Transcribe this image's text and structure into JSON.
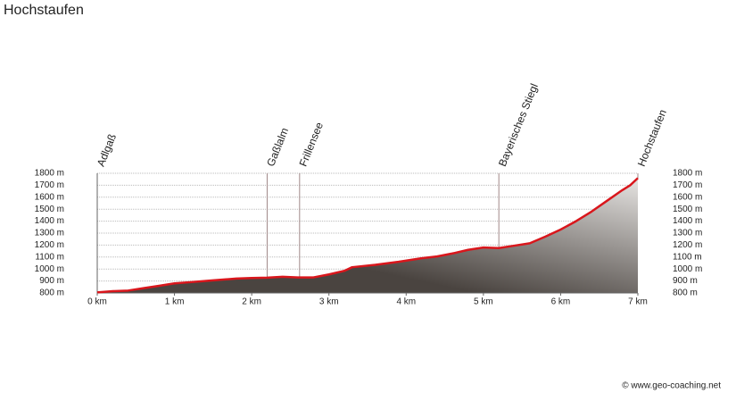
{
  "chart_data": {
    "type": "area",
    "title": "Hochstaufen",
    "x": [
      0,
      0.2,
      0.4,
      0.6,
      0.8,
      1.0,
      1.2,
      1.5,
      1.8,
      2.0,
      2.2,
      2.4,
      2.6,
      2.8,
      3.0,
      3.2,
      3.3,
      3.6,
      3.9,
      4.2,
      4.4,
      4.6,
      4.8,
      5.0,
      5.2,
      5.4,
      5.6,
      5.8,
      6.0,
      6.2,
      6.4,
      6.6,
      6.8,
      6.9,
      7.0
    ],
    "values": [
      805,
      815,
      820,
      840,
      860,
      880,
      890,
      905,
      920,
      925,
      928,
      935,
      930,
      930,
      955,
      985,
      1015,
      1035,
      1060,
      1090,
      1105,
      1130,
      1160,
      1180,
      1175,
      1195,
      1215,
      1270,
      1330,
      1400,
      1480,
      1570,
      1660,
      1700,
      1760
    ],
    "line_color": "#d9161c",
    "fill_colors": [
      "#4a4440",
      "#e6e4e2"
    ],
    "xlim": [
      0,
      7
    ],
    "xticks": [
      {
        "value": 0,
        "label": "0 km"
      },
      {
        "value": 1,
        "label": "1 km"
      },
      {
        "value": 2,
        "label": "2 km"
      },
      {
        "value": 3,
        "label": "3 km"
      },
      {
        "value": 4,
        "label": "4 km"
      },
      {
        "value": 5,
        "label": "5 km"
      },
      {
        "value": 6,
        "label": "6 km"
      },
      {
        "value": 7,
        "label": "7 km"
      }
    ],
    "ylim": [
      800,
      1800
    ],
    "yticks": [
      {
        "value": 800,
        "label": "800 m"
      },
      {
        "value": 900,
        "label": "900 m"
      },
      {
        "value": 1000,
        "label": "1000 m"
      },
      {
        "value": 1100,
        "label": "1100 m"
      },
      {
        "value": 1200,
        "label": "1200 m"
      },
      {
        "value": 1300,
        "label": "1300 m"
      },
      {
        "value": 1400,
        "label": "1400 m"
      },
      {
        "value": 1500,
        "label": "1500 m"
      },
      {
        "value": 1600,
        "label": "1600 m"
      },
      {
        "value": 1700,
        "label": "1700 m"
      },
      {
        "value": 1800,
        "label": "1800 m"
      }
    ],
    "grid": true,
    "annotations": [
      {
        "label": "Adlgaß",
        "x": 0
      },
      {
        "label": "Gaßlalm",
        "x": 2.2
      },
      {
        "label": "Frillensee",
        "x": 2.62
      },
      {
        "label": "Bayerisches Stiegl",
        "x": 5.2
      },
      {
        "label": "Hochstaufen",
        "x": 7
      }
    ],
    "credit": "© www.geo-coaching.net"
  }
}
